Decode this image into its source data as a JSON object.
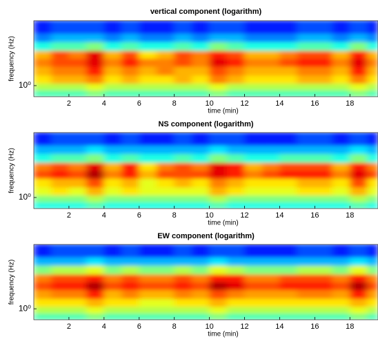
{
  "chart_data": [
    {
      "type": "heatmap",
      "title": "vertical component (logarithm)",
      "xlabel": "time (min)",
      "ylabel": "frequency (Hz)",
      "xlim": [
        0,
        19.6
      ],
      "xticks": [
        2,
        4,
        6,
        8,
        10,
        12,
        14,
        16,
        18
      ],
      "ylim": [
        0.6,
        20
      ],
      "yscale": "log",
      "yticks": [
        {
          "value": 1,
          "label": "10⁰"
        }
      ],
      "colormap": "jet",
      "clim": [
        0,
        1
      ],
      "xbins": [
        0,
        1,
        2,
        3,
        4,
        5,
        6,
        7,
        8,
        9,
        10,
        11,
        12,
        13,
        14,
        15,
        16,
        17,
        18,
        19,
        19.6
      ],
      "ybins": [
        0.6,
        0.8,
        1.1,
        1.6,
        2.4,
        3.5,
        5,
        7.5,
        11,
        20
      ],
      "values": [
        [
          0.45,
          0.45,
          0.45,
          0.5,
          0.45,
          0.45,
          0.45,
          0.45,
          0.45,
          0.45,
          0.5,
          0.45,
          0.45,
          0.45,
          0.45,
          0.45,
          0.45,
          0.45,
          0.5,
          0.45
        ],
        [
          0.55,
          0.55,
          0.55,
          0.6,
          0.55,
          0.55,
          0.55,
          0.55,
          0.55,
          0.55,
          0.6,
          0.55,
          0.55,
          0.55,
          0.55,
          0.55,
          0.55,
          0.55,
          0.6,
          0.55
        ],
        [
          0.65,
          0.7,
          0.7,
          0.75,
          0.65,
          0.7,
          0.65,
          0.65,
          0.7,
          0.65,
          0.75,
          0.7,
          0.65,
          0.65,
          0.65,
          0.7,
          0.7,
          0.65,
          0.75,
          0.65
        ],
        [
          0.7,
          0.75,
          0.75,
          0.85,
          0.7,
          0.75,
          0.7,
          0.75,
          0.7,
          0.7,
          0.8,
          0.75,
          0.7,
          0.7,
          0.7,
          0.75,
          0.75,
          0.7,
          0.85,
          0.7
        ],
        [
          0.75,
          0.8,
          0.8,
          0.9,
          0.75,
          0.85,
          0.75,
          0.75,
          0.8,
          0.75,
          0.9,
          0.85,
          0.75,
          0.75,
          0.8,
          0.85,
          0.85,
          0.75,
          0.9,
          0.75
        ],
        [
          0.7,
          0.8,
          0.75,
          0.9,
          0.7,
          0.8,
          0.65,
          0.7,
          0.8,
          0.75,
          0.85,
          0.8,
          0.7,
          0.7,
          0.75,
          0.8,
          0.8,
          0.7,
          0.85,
          0.7
        ],
        [
          0.4,
          0.45,
          0.45,
          0.5,
          0.4,
          0.45,
          0.4,
          0.4,
          0.45,
          0.4,
          0.5,
          0.45,
          0.4,
          0.4,
          0.4,
          0.45,
          0.45,
          0.4,
          0.5,
          0.4
        ],
        [
          0.25,
          0.3,
          0.3,
          0.3,
          0.25,
          0.3,
          0.25,
          0.25,
          0.3,
          0.25,
          0.3,
          0.3,
          0.25,
          0.25,
          0.25,
          0.3,
          0.3,
          0.25,
          0.3,
          0.25
        ],
        [
          0.15,
          0.2,
          0.2,
          0.2,
          0.15,
          0.2,
          0.15,
          0.15,
          0.2,
          0.15,
          0.2,
          0.2,
          0.15,
          0.15,
          0.15,
          0.2,
          0.2,
          0.15,
          0.2,
          0.15
        ]
      ]
    },
    {
      "type": "heatmap",
      "title": "NS component (logarithm)",
      "xlabel": "time (min)",
      "ylabel": "frequency (Hz)",
      "xlim": [
        0,
        19.6
      ],
      "xticks": [
        2,
        4,
        6,
        8,
        10,
        12,
        14,
        16,
        18
      ],
      "ylim": [
        0.6,
        20
      ],
      "yscale": "log",
      "yticks": [
        {
          "value": 1,
          "label": "10⁰"
        }
      ],
      "colormap": "jet",
      "clim": [
        0,
        1
      ],
      "xbins": [
        0,
        1,
        2,
        3,
        4,
        5,
        6,
        7,
        8,
        9,
        10,
        11,
        12,
        13,
        14,
        15,
        16,
        17,
        18,
        19,
        19.6
      ],
      "ybins": [
        0.6,
        0.8,
        1.1,
        1.6,
        2.4,
        3.5,
        5,
        7.5,
        11,
        20
      ],
      "values": [
        [
          0.4,
          0.4,
          0.4,
          0.45,
          0.4,
          0.4,
          0.4,
          0.4,
          0.4,
          0.4,
          0.45,
          0.4,
          0.4,
          0.4,
          0.4,
          0.4,
          0.4,
          0.4,
          0.45,
          0.4
        ],
        [
          0.5,
          0.5,
          0.5,
          0.55,
          0.5,
          0.5,
          0.5,
          0.5,
          0.5,
          0.5,
          0.55,
          0.5,
          0.5,
          0.5,
          0.5,
          0.5,
          0.5,
          0.5,
          0.55,
          0.5
        ],
        [
          0.6,
          0.65,
          0.6,
          0.7,
          0.6,
          0.65,
          0.6,
          0.6,
          0.6,
          0.6,
          0.7,
          0.65,
          0.6,
          0.6,
          0.6,
          0.65,
          0.65,
          0.6,
          0.7,
          0.6
        ],
        [
          0.65,
          0.7,
          0.7,
          0.8,
          0.65,
          0.7,
          0.6,
          0.65,
          0.7,
          0.65,
          0.75,
          0.7,
          0.65,
          0.65,
          0.65,
          0.7,
          0.7,
          0.65,
          0.8,
          0.65
        ],
        [
          0.8,
          0.85,
          0.8,
          0.95,
          0.75,
          0.85,
          0.7,
          0.8,
          0.8,
          0.8,
          0.9,
          0.85,
          0.75,
          0.8,
          0.85,
          0.85,
          0.85,
          0.75,
          0.9,
          0.8
        ],
        [
          0.75,
          0.8,
          0.75,
          0.9,
          0.7,
          0.85,
          0.65,
          0.75,
          0.8,
          0.75,
          0.9,
          0.85,
          0.7,
          0.75,
          0.8,
          0.8,
          0.8,
          0.7,
          0.85,
          0.75
        ],
        [
          0.4,
          0.45,
          0.45,
          0.5,
          0.4,
          0.45,
          0.4,
          0.4,
          0.45,
          0.4,
          0.5,
          0.45,
          0.4,
          0.4,
          0.45,
          0.45,
          0.45,
          0.4,
          0.5,
          0.4
        ],
        [
          0.3,
          0.3,
          0.3,
          0.35,
          0.3,
          0.3,
          0.3,
          0.3,
          0.3,
          0.3,
          0.35,
          0.3,
          0.3,
          0.3,
          0.3,
          0.3,
          0.3,
          0.3,
          0.35,
          0.3
        ],
        [
          0.15,
          0.2,
          0.2,
          0.2,
          0.15,
          0.2,
          0.15,
          0.15,
          0.2,
          0.15,
          0.2,
          0.2,
          0.15,
          0.15,
          0.15,
          0.2,
          0.2,
          0.15,
          0.2,
          0.15
        ]
      ]
    },
    {
      "type": "heatmap",
      "title": "EW component (logarithm)",
      "xlabel": "time (min)",
      "ylabel": "frequency (Hz)",
      "xlim": [
        0,
        19.6
      ],
      "xticks": [
        2,
        4,
        6,
        8,
        10,
        12,
        14,
        16,
        18
      ],
      "ylim": [
        0.6,
        20
      ],
      "yscale": "log",
      "yticks": [
        {
          "value": 1,
          "label": "10⁰"
        }
      ],
      "colormap": "jet",
      "clim": [
        0,
        1
      ],
      "xbins": [
        0,
        1,
        2,
        3,
        4,
        5,
        6,
        7,
        8,
        9,
        10,
        11,
        12,
        13,
        14,
        15,
        16,
        17,
        18,
        19,
        19.6
      ],
      "ybins": [
        0.6,
        0.8,
        1.1,
        1.6,
        2.4,
        3.5,
        5,
        7.5,
        11,
        20
      ],
      "values": [
        [
          0.45,
          0.45,
          0.45,
          0.5,
          0.45,
          0.45,
          0.45,
          0.45,
          0.45,
          0.45,
          0.5,
          0.45,
          0.45,
          0.45,
          0.45,
          0.45,
          0.45,
          0.45,
          0.5,
          0.45
        ],
        [
          0.55,
          0.55,
          0.55,
          0.6,
          0.55,
          0.55,
          0.55,
          0.55,
          0.55,
          0.55,
          0.6,
          0.55,
          0.55,
          0.55,
          0.55,
          0.55,
          0.55,
          0.55,
          0.6,
          0.55
        ],
        [
          0.65,
          0.65,
          0.65,
          0.7,
          0.65,
          0.65,
          0.6,
          0.6,
          0.65,
          0.65,
          0.7,
          0.65,
          0.65,
          0.65,
          0.65,
          0.65,
          0.65,
          0.65,
          0.7,
          0.65
        ],
        [
          0.72,
          0.75,
          0.75,
          0.85,
          0.7,
          0.75,
          0.7,
          0.7,
          0.75,
          0.72,
          0.8,
          0.75,
          0.72,
          0.72,
          0.72,
          0.75,
          0.75,
          0.72,
          0.85,
          0.72
        ],
        [
          0.8,
          0.85,
          0.85,
          0.95,
          0.8,
          0.85,
          0.8,
          0.8,
          0.85,
          0.8,
          0.95,
          0.9,
          0.8,
          0.8,
          0.85,
          0.85,
          0.85,
          0.8,
          0.95,
          0.8
        ],
        [
          0.75,
          0.8,
          0.8,
          0.85,
          0.75,
          0.8,
          0.75,
          0.75,
          0.8,
          0.75,
          0.85,
          0.85,
          0.75,
          0.75,
          0.8,
          0.8,
          0.8,
          0.75,
          0.85,
          0.75
        ],
        [
          0.5,
          0.55,
          0.55,
          0.6,
          0.5,
          0.55,
          0.5,
          0.5,
          0.55,
          0.5,
          0.6,
          0.55,
          0.5,
          0.5,
          0.5,
          0.55,
          0.55,
          0.5,
          0.6,
          0.5
        ],
        [
          0.3,
          0.3,
          0.3,
          0.35,
          0.3,
          0.3,
          0.3,
          0.3,
          0.3,
          0.3,
          0.35,
          0.3,
          0.3,
          0.3,
          0.3,
          0.3,
          0.3,
          0.3,
          0.35,
          0.3
        ],
        [
          0.15,
          0.2,
          0.2,
          0.2,
          0.15,
          0.2,
          0.15,
          0.15,
          0.2,
          0.15,
          0.2,
          0.2,
          0.15,
          0.15,
          0.15,
          0.2,
          0.2,
          0.15,
          0.2,
          0.15
        ]
      ]
    }
  ]
}
